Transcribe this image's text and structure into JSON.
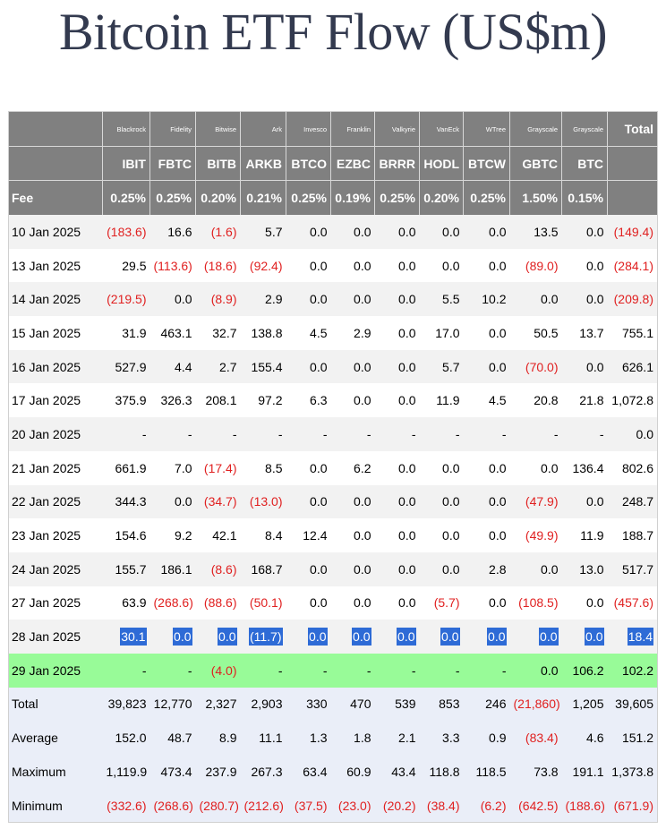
{
  "title": "Bitcoin ETF Flow (US$m)",
  "issuers": [
    "Blackrock",
    "Fidelity",
    "Bitwise",
    "Ark",
    "Invesco",
    "Franklin",
    "Valkyrie",
    "VanEck",
    "WTree",
    "Grayscale",
    "Grayscale"
  ],
  "total_label": "Total",
  "tickers": [
    "IBIT",
    "FBTC",
    "BITB",
    "ARKB",
    "BTCO",
    "EZBC",
    "BRRR",
    "HODL",
    "BTCW",
    "GBTC",
    "BTC"
  ],
  "fee_label": "Fee",
  "fees": [
    "0.25%",
    "0.25%",
    "0.20%",
    "0.21%",
    "0.25%",
    "0.19%",
    "0.25%",
    "0.20%",
    "0.25%",
    "1.50%",
    "0.15%"
  ],
  "rows": [
    {
      "date": "10 Jan 2025",
      "values": [
        "(183.6)",
        "16.6",
        "(1.6)",
        "5.7",
        "0.0",
        "0.0",
        "0.0",
        "0.0",
        "0.0",
        "13.5",
        "0.0"
      ],
      "total": "(149.4)"
    },
    {
      "date": "13 Jan 2025",
      "values": [
        "29.5",
        "(113.6)",
        "(18.6)",
        "(92.4)",
        "0.0",
        "0.0",
        "0.0",
        "0.0",
        "0.0",
        "(89.0)",
        "0.0"
      ],
      "total": "(284.1)"
    },
    {
      "date": "14 Jan 2025",
      "values": [
        "(219.5)",
        "0.0",
        "(8.9)",
        "2.9",
        "0.0",
        "0.0",
        "0.0",
        "5.5",
        "10.2",
        "0.0",
        "0.0"
      ],
      "total": "(209.8)"
    },
    {
      "date": "15 Jan 2025",
      "values": [
        "31.9",
        "463.1",
        "32.7",
        "138.8",
        "4.5",
        "2.9",
        "0.0",
        "17.0",
        "0.0",
        "50.5",
        "13.7"
      ],
      "total": "755.1"
    },
    {
      "date": "16 Jan 2025",
      "values": [
        "527.9",
        "4.4",
        "2.7",
        "155.4",
        "0.0",
        "0.0",
        "0.0",
        "5.7",
        "0.0",
        "(70.0)",
        "0.0"
      ],
      "total": "626.1"
    },
    {
      "date": "17 Jan 2025",
      "values": [
        "375.9",
        "326.3",
        "208.1",
        "97.2",
        "6.3",
        "0.0",
        "0.0",
        "11.9",
        "4.5",
        "20.8",
        "21.8"
      ],
      "total": "1,072.8"
    },
    {
      "date": "20 Jan 2025",
      "values": [
        "-",
        "-",
        "-",
        "-",
        "-",
        "-",
        "-",
        "-",
        "-",
        "-",
        "-"
      ],
      "total": "0.0"
    },
    {
      "date": "21 Jan 2025",
      "values": [
        "661.9",
        "7.0",
        "(17.4)",
        "8.5",
        "0.0",
        "6.2",
        "0.0",
        "0.0",
        "0.0",
        "0.0",
        "136.4"
      ],
      "total": "802.6"
    },
    {
      "date": "22 Jan 2025",
      "values": [
        "344.3",
        "0.0",
        "(34.7)",
        "(13.0)",
        "0.0",
        "0.0",
        "0.0",
        "0.0",
        "0.0",
        "(47.9)",
        "0.0"
      ],
      "total": "248.7"
    },
    {
      "date": "23 Jan 2025",
      "values": [
        "154.6",
        "9.2",
        "42.1",
        "8.4",
        "12.4",
        "0.0",
        "0.0",
        "0.0",
        "0.0",
        "(49.9)",
        "11.9"
      ],
      "total": "188.7"
    },
    {
      "date": "24 Jan 2025",
      "values": [
        "155.7",
        "186.1",
        "(8.6)",
        "168.7",
        "0.0",
        "0.0",
        "0.0",
        "0.0",
        "2.8",
        "0.0",
        "13.0"
      ],
      "total": "517.7"
    },
    {
      "date": "27 Jan 2025",
      "values": [
        "63.9",
        "(268.6)",
        "(88.6)",
        "(50.1)",
        "0.0",
        "0.0",
        "0.0",
        "(5.7)",
        "0.0",
        "(108.5)",
        "0.0"
      ],
      "total": "(457.6)"
    },
    {
      "date": "28 Jan 2025",
      "values": [
        "30.1",
        "0.0",
        "0.0",
        "(11.7)",
        "0.0",
        "0.0",
        "0.0",
        "0.0",
        "0.0",
        "0.0",
        "0.0"
      ],
      "total": "18.4",
      "style": "hl"
    },
    {
      "date": "29 Jan 2025",
      "values": [
        "-",
        "-",
        "(4.0)",
        "-",
        "-",
        "-",
        "-",
        "-",
        "-",
        "0.0",
        "106.2"
      ],
      "total": "102.2",
      "style": "green"
    },
    {
      "date": "Total",
      "values": [
        "39,823",
        "12,770",
        "2,327",
        "2,903",
        "330",
        "470",
        "539",
        "853",
        "246",
        "(21,860)",
        "1,205"
      ],
      "total": "39,605",
      "style": "stat"
    },
    {
      "date": "Average",
      "values": [
        "152.0",
        "48.7",
        "8.9",
        "11.1",
        "1.3",
        "1.8",
        "2.1",
        "3.3",
        "0.9",
        "(83.4)",
        "4.6"
      ],
      "total": "151.2",
      "style": "stat"
    },
    {
      "date": "Maximum",
      "values": [
        "1,119.9",
        "473.4",
        "237.9",
        "267.3",
        "63.4",
        "60.9",
        "43.4",
        "118.8",
        "118.5",
        "73.8",
        "191.1"
      ],
      "total": "1,373.8",
      "style": "stat"
    },
    {
      "date": "Minimum",
      "values": [
        "(332.6)",
        "(268.6)",
        "(280.7)",
        "(212.6)",
        "(37.5)",
        "(23.0)",
        "(20.2)",
        "(38.4)",
        "(6.2)",
        "(642.5)",
        "(188.6)"
      ],
      "total": "(671.9)",
      "style": "stat"
    }
  ]
}
